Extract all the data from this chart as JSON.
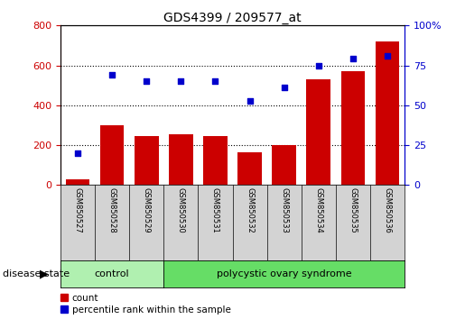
{
  "title": "GDS4399 / 209577_at",
  "samples": [
    "GSM850527",
    "GSM850528",
    "GSM850529",
    "GSM850530",
    "GSM850531",
    "GSM850532",
    "GSM850533",
    "GSM850534",
    "GSM850535",
    "GSM850536"
  ],
  "counts": [
    30,
    300,
    245,
    255,
    245,
    165,
    200,
    530,
    570,
    720
  ],
  "percentiles": [
    20,
    69,
    65,
    65,
    65,
    53,
    61,
    75,
    79,
    81
  ],
  "bar_color": "#cc0000",
  "dot_color": "#0000cc",
  "left_axis_color": "#cc0000",
  "right_axis_color": "#0000cc",
  "ylim_left": [
    0,
    800
  ],
  "ylim_right": [
    0,
    100
  ],
  "yticks_left": [
    0,
    200,
    400,
    600,
    800
  ],
  "yticks_right": [
    0,
    25,
    50,
    75,
    100
  ],
  "bg_color": "#ffffff",
  "box_bg": "#d3d3d3",
  "legend_count_label": "count",
  "legend_pct_label": "percentile rank within the sample",
  "control_n": 3,
  "pcos_n": 7,
  "control_label": "control",
  "pcos_label": "polycystic ovary syndrome",
  "control_color": "#b0f0b0",
  "pcos_color": "#66dd66",
  "disease_state_label": "disease state",
  "title_fontsize": 10,
  "tick_fontsize": 8,
  "label_fontsize": 7.5
}
